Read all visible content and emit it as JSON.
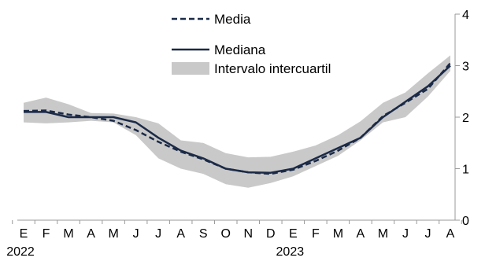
{
  "chart_data": {
    "type": "line",
    "title": "",
    "xlabel": "",
    "ylabel": "",
    "x": [
      "2022-01",
      "2022-02",
      "2022-03",
      "2022-04",
      "2022-05",
      "2022-06",
      "2022-07",
      "2022-08",
      "2022-09",
      "2022-10",
      "2022-11",
      "2022-12",
      "2023-01",
      "2023-02",
      "2023-03",
      "2023-04",
      "2023-05",
      "2023-06",
      "2023-07",
      "2023-08"
    ],
    "x_tick_labels": [
      "E",
      "F",
      "M",
      "A",
      "M",
      "J",
      "J",
      "A",
      "S",
      "O",
      "N",
      "D",
      "E",
      "F",
      "M",
      "A",
      "M",
      "J",
      "J",
      "A"
    ],
    "year_labels": [
      {
        "label": "2022",
        "index": 0
      },
      {
        "label": "2023",
        "index": 12
      }
    ],
    "ylim": [
      0,
      4
    ],
    "y_ticks": [
      0,
      1,
      2,
      3,
      4
    ],
    "y_axis_side": "right",
    "legend_position": "top-center",
    "series": [
      {
        "name": "Media",
        "style": "dashed",
        "color": "#1b2a47",
        "values": [
          2.12,
          2.13,
          2.05,
          2.0,
          1.93,
          1.75,
          1.52,
          1.33,
          1.18,
          1.0,
          0.93,
          0.9,
          0.98,
          1.15,
          1.35,
          1.6,
          2.02,
          2.28,
          2.55,
          3.05
        ]
      },
      {
        "name": "Mediana",
        "style": "solid",
        "color": "#1b2a47",
        "values": [
          2.1,
          2.1,
          2.0,
          2.0,
          2.0,
          1.9,
          1.6,
          1.35,
          1.2,
          1.0,
          0.93,
          0.92,
          1.0,
          1.2,
          1.4,
          1.6,
          2.0,
          2.3,
          2.6,
          3.0
        ]
      },
      {
        "name": "Intervalo intercuartil",
        "style": "band",
        "color": "#c9c9c9",
        "lower": [
          1.9,
          1.88,
          1.9,
          1.93,
          1.9,
          1.65,
          1.2,
          1.0,
          0.9,
          0.7,
          0.63,
          0.72,
          0.85,
          1.05,
          1.25,
          1.55,
          1.9,
          2.0,
          2.4,
          2.9
        ],
        "upper": [
          2.28,
          2.38,
          2.25,
          2.08,
          2.07,
          2.0,
          1.88,
          1.55,
          1.5,
          1.3,
          1.22,
          1.23,
          1.33,
          1.45,
          1.65,
          1.92,
          2.28,
          2.48,
          2.85,
          3.2
        ]
      }
    ],
    "colors": {
      "line": "#1b2a47",
      "band": "#c9c9c9",
      "axis": "#999999"
    }
  }
}
